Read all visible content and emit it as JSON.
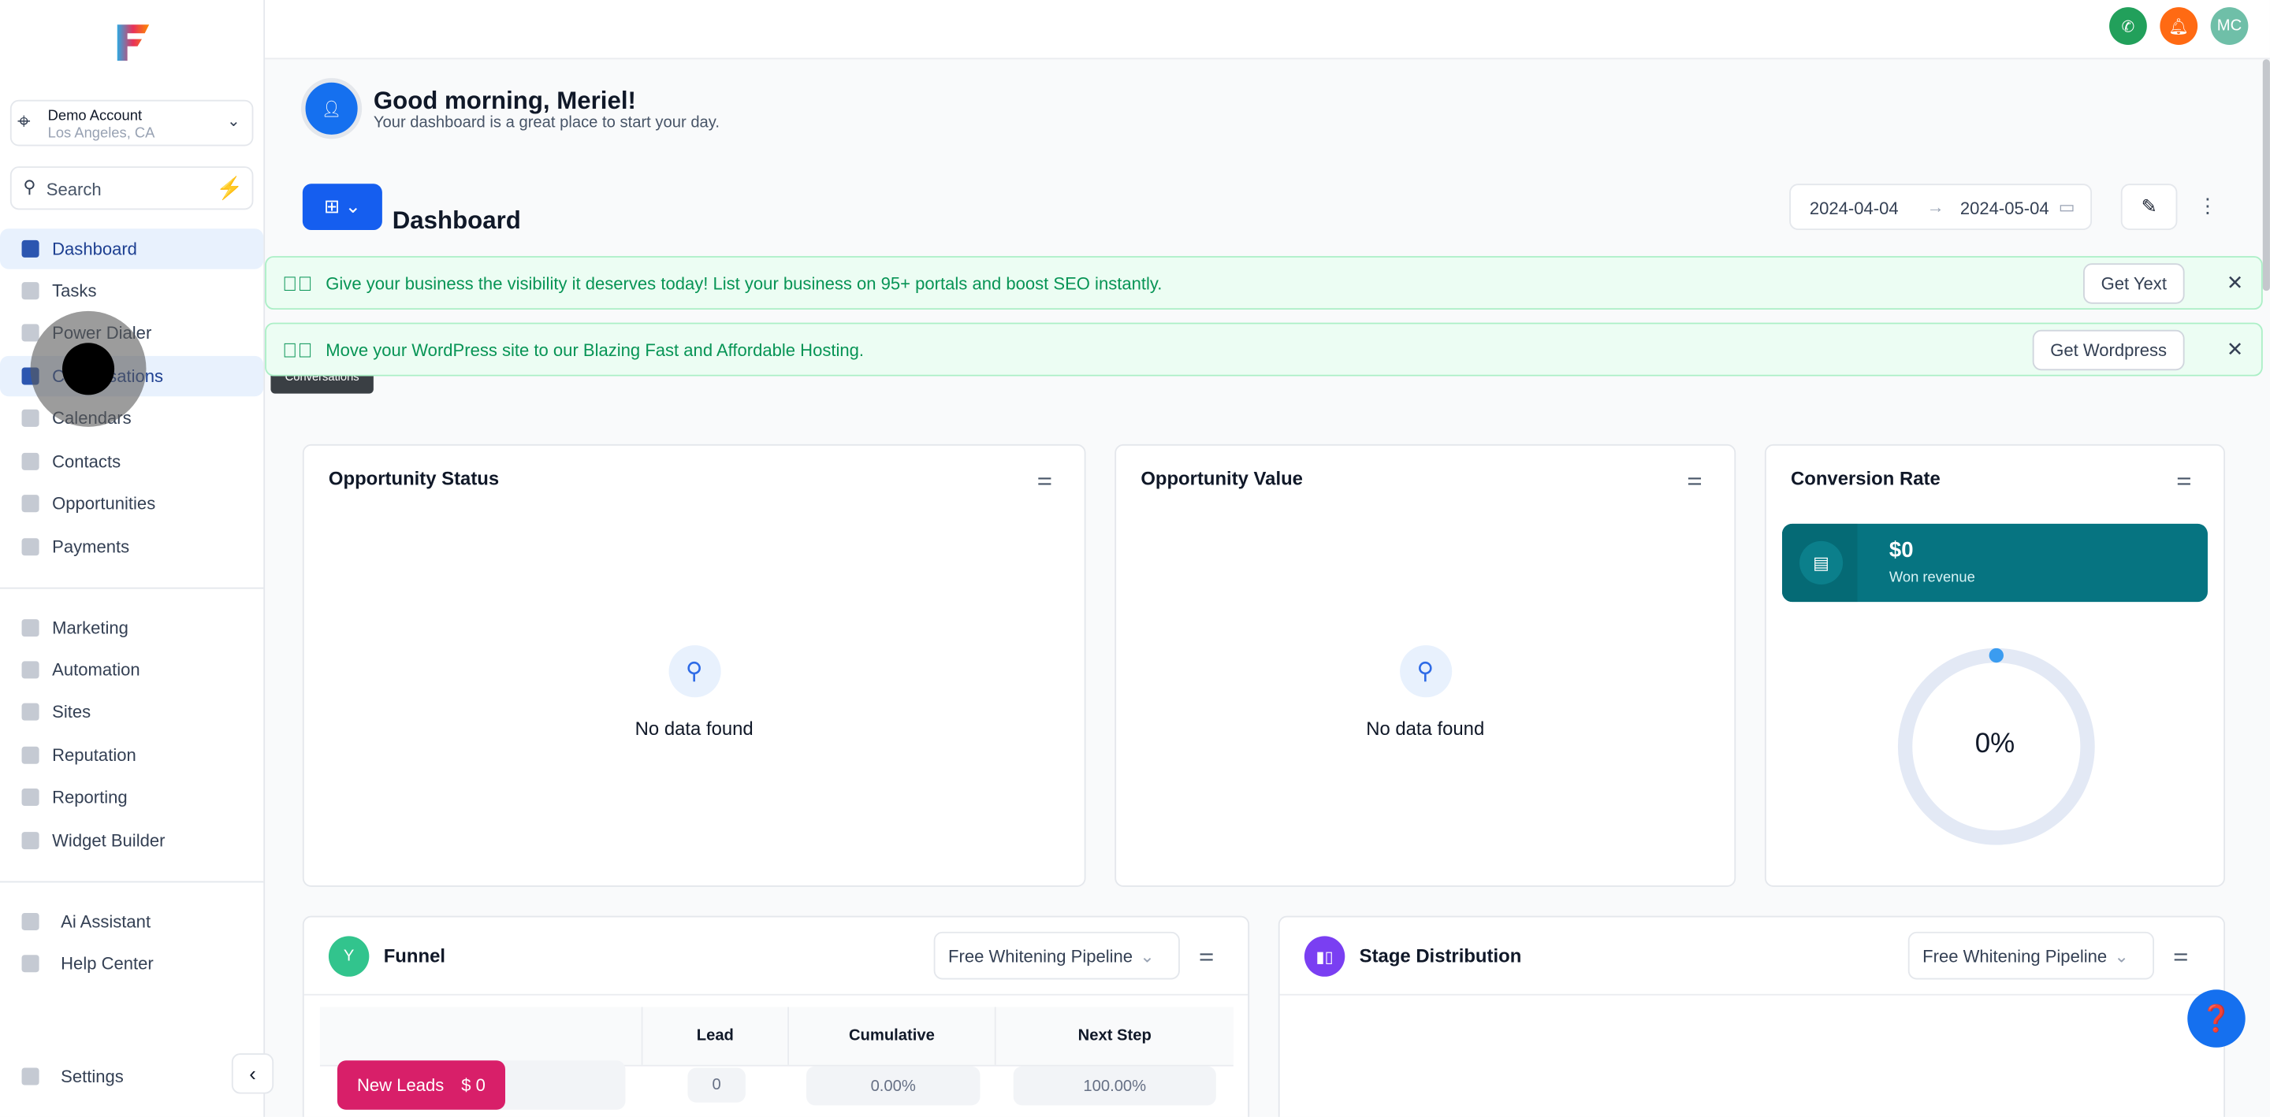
{
  "sidebar": {
    "account": {
      "name": "Demo Account",
      "location": "Los Angeles, CA"
    },
    "search_placeholder": "Search",
    "items": [
      {
        "label": "Dashboard",
        "icon": "dashboard-icon",
        "active": true
      },
      {
        "label": "Tasks",
        "icon": "tasks-icon"
      },
      {
        "label": "Power Dialer",
        "icon": "power-dialer-icon"
      },
      {
        "label": "Conversations",
        "icon": "conversations-icon",
        "hovered": true
      },
      {
        "label": "Calendars",
        "icon": "calendar-icon"
      },
      {
        "label": "Contacts",
        "icon": "contacts-icon"
      },
      {
        "label": "Opportunities",
        "icon": "funnel-icon"
      },
      {
        "label": "Payments",
        "icon": "payments-icon"
      },
      {
        "label": "Marketing",
        "icon": "marketing-icon"
      },
      {
        "label": "Automation",
        "icon": "automation-icon"
      },
      {
        "label": "Sites",
        "icon": "sites-icon"
      },
      {
        "label": "Reputation",
        "icon": "star-icon"
      },
      {
        "label": "Reporting",
        "icon": "pie-chart-icon"
      },
      {
        "label": "Widget Builder",
        "icon": "widget-icon"
      },
      {
        "label": "Ai Assistant",
        "icon": "robot-icon"
      },
      {
        "label": "Help Center",
        "icon": "question-icon"
      },
      {
        "label": "Settings",
        "icon": "gear-icon"
      }
    ],
    "tooltip": "Conversations"
  },
  "topbar": {
    "avatar_initials": "MC",
    "colors": {
      "phone": "#22a05b",
      "bell": "#ff6a13",
      "avatar": "#6fbfa8"
    }
  },
  "greeting": {
    "title": "Good morning, Meriel!",
    "subtitle": "Your dashboard is a great place to start your day."
  },
  "dashboard": {
    "title": "Dashboard",
    "date_start": "2024-04-04",
    "date_end": "2024-05-04"
  },
  "banners": [
    {
      "text": "Give your business the visibility it deserves today! List your business on 95+ portals and boost SEO instantly.",
      "button": "Get Yext"
    },
    {
      "text": "Move your WordPress site to our Blazing Fast and Affordable Hosting.",
      "button": "Get Wordpress"
    }
  ],
  "cards": {
    "opportunity_status": {
      "title": "Opportunity Status",
      "empty": "No data found"
    },
    "opportunity_value": {
      "title": "Opportunity Value",
      "empty": "No data found"
    },
    "conversion_rate": {
      "title": "Conversion Rate",
      "won_amount": "$0",
      "won_label": "Won revenue",
      "rate": "0%",
      "rate_value": 0
    },
    "funnel": {
      "title": "Funnel",
      "pipeline": "Free Whitening Pipeline",
      "columns": [
        "Lead",
        "Cumulative",
        "Next Step"
      ],
      "rows": [
        {
          "stage": "New Leads",
          "value": "$ 0",
          "lead": "0",
          "cumulative": "0.00%",
          "next_step": "100.00%"
        }
      ]
    },
    "stage_distribution": {
      "title": "Stage Distribution",
      "pipeline": "Free Whitening Pipeline"
    }
  }
}
